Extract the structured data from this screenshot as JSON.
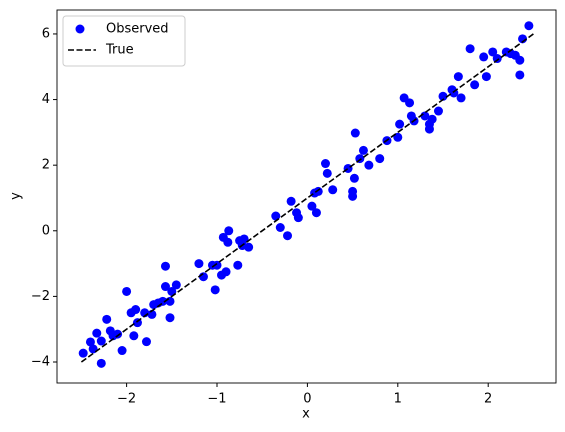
{
  "chart_data": {
    "type": "scatter",
    "xlabel": "x",
    "ylabel": "y",
    "xlim": [
      -2.77,
      2.75
    ],
    "ylim": [
      -4.64,
      6.73
    ],
    "xticks": [
      {
        "value": -2,
        "label": "−2"
      },
      {
        "value": -1,
        "label": "−1"
      },
      0,
      1,
      2
    ],
    "yticks": [
      {
        "value": -4,
        "label": "−4"
      },
      {
        "value": -2,
        "label": "−2"
      },
      0,
      2,
      4,
      6
    ],
    "legend": "upper left",
    "series": [
      {
        "name": "Observed",
        "color": "#0000ff",
        "marker": "circle",
        "x": [
          -2.48,
          -2.4,
          -2.37,
          -2.33,
          -2.28,
          -2.28,
          -2.22,
          -2.18,
          -2.15,
          -2.1,
          -2.05,
          -2.0,
          -1.95,
          -1.92,
          -1.9,
          -1.88,
          -1.8,
          -1.78,
          -1.72,
          -1.7,
          -1.65,
          -1.6,
          -1.57,
          -1.57,
          -1.52,
          -1.52,
          -1.5,
          -1.45,
          -1.2,
          -1.15,
          -1.05,
          -1.02,
          -1.0,
          -0.95,
          -0.93,
          -0.9,
          -0.88,
          -0.87,
          -0.77,
          -0.75,
          -0.72,
          -0.7,
          -0.65,
          -0.35,
          -0.3,
          -0.22,
          -0.18,
          -0.12,
          -0.1,
          0.05,
          0.08,
          0.1,
          0.12,
          0.2,
          0.22,
          0.28,
          0.45,
          0.5,
          0.5,
          0.52,
          0.53,
          0.58,
          0.62,
          0.68,
          0.8,
          0.88,
          1.0,
          1.02,
          1.07,
          1.13,
          1.15,
          1.18,
          1.3,
          1.35,
          1.35,
          1.38,
          1.45,
          1.5,
          1.6,
          1.62,
          1.67,
          1.7,
          1.8,
          1.85,
          1.95,
          1.98,
          2.05,
          2.1,
          2.2,
          2.25,
          2.3,
          2.35,
          2.35,
          2.38,
          2.45
        ],
        "y": [
          -3.73,
          -3.39,
          -3.6,
          -3.12,
          -3.36,
          -4.04,
          -2.7,
          -3.05,
          -3.2,
          -3.15,
          -3.65,
          -1.85,
          -2.5,
          -3.2,
          -2.4,
          -2.8,
          -2.5,
          -3.38,
          -2.55,
          -2.25,
          -2.2,
          -2.15,
          -1.7,
          -1.08,
          -2.15,
          -2.65,
          -1.85,
          -1.65,
          -1.0,
          -1.4,
          -1.05,
          -1.8,
          -1.05,
          -1.35,
          -0.2,
          -1.25,
          -0.35,
          0.0,
          -1.05,
          -0.3,
          -0.45,
          -0.25,
          -0.5,
          0.45,
          0.1,
          -0.15,
          0.9,
          0.55,
          0.4,
          0.75,
          1.15,
          0.55,
          1.2,
          2.05,
          1.75,
          1.25,
          1.9,
          1.05,
          1.2,
          1.6,
          2.98,
          2.2,
          2.45,
          2.0,
          2.2,
          2.75,
          2.85,
          3.25,
          4.05,
          3.9,
          3.5,
          3.35,
          3.5,
          3.1,
          3.25,
          3.4,
          3.65,
          4.1,
          4.3,
          4.2,
          4.7,
          4.05,
          5.55,
          4.45,
          5.3,
          4.7,
          5.45,
          5.25,
          5.45,
          5.4,
          5.35,
          4.75,
          5.2,
          5.85,
          6.25
        ]
      },
      {
        "name": "True",
        "color": "#000000",
        "marker": "dashed-line",
        "x": [
          -2.5,
          2.5
        ],
        "y": [
          -4,
          6
        ]
      }
    ]
  }
}
